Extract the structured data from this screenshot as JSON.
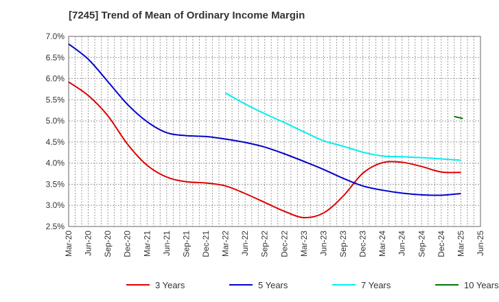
{
  "title": "[7245]  Trend of Mean of Ordinary Income Margin",
  "chart_data": {
    "type": "line",
    "title": "[7245]  Trend of Mean of Ordinary Income Margin",
    "xlabel": "",
    "ylabel": "",
    "ylim": [
      2.5,
      7.0
    ],
    "y_ticks": [
      "2.5%",
      "3.0%",
      "3.5%",
      "4.0%",
      "4.5%",
      "5.0%",
      "5.5%",
      "6.0%",
      "6.5%",
      "7.0%"
    ],
    "x_ticks": [
      "Mar-20",
      "Jun-20",
      "Sep-20",
      "Dec-20",
      "Mar-21",
      "Jun-21",
      "Sep-21",
      "Dec-21",
      "Mar-22",
      "Jun-22",
      "Sep-22",
      "Dec-22",
      "Mar-23",
      "Jun-23",
      "Sep-23",
      "Dec-23",
      "Mar-24",
      "Jun-24",
      "Sep-24",
      "Dec-24",
      "Mar-25",
      "Jun-25"
    ],
    "grid": true,
    "legend_position": "bottom",
    "x": [
      "Mar-20",
      "Jun-20",
      "Sep-20",
      "Dec-20",
      "Mar-21",
      "Jun-21",
      "Sep-21",
      "Dec-21",
      "Mar-22",
      "Jun-22",
      "Sep-22",
      "Dec-22",
      "Mar-23",
      "Jun-23",
      "Sep-23",
      "Dec-23",
      "Mar-24",
      "Jun-24",
      "Sep-24",
      "Dec-24",
      "Mar-25"
    ],
    "series": [
      {
        "name": "3 Years",
        "color": "#dd0000",
        "values": [
          5.92,
          5.6,
          5.12,
          4.45,
          3.95,
          3.67,
          3.56,
          3.53,
          3.46,
          3.28,
          3.07,
          2.86,
          2.71,
          2.82,
          3.22,
          3.76,
          4.01,
          4.02,
          3.92,
          3.79,
          3.78
        ]
      },
      {
        "name": "5 Years",
        "color": "#0000cc",
        "values": [
          6.82,
          6.46,
          5.93,
          5.39,
          4.98,
          4.72,
          4.65,
          4.63,
          4.57,
          4.49,
          4.38,
          4.22,
          4.04,
          3.85,
          3.64,
          3.46,
          3.36,
          3.29,
          3.25,
          3.24,
          3.28
        ]
      },
      {
        "name": "7 Years",
        "color": "#00eeee",
        "values": [
          null,
          null,
          null,
          null,
          null,
          null,
          null,
          null,
          5.66,
          5.4,
          5.17,
          4.96,
          4.74,
          4.53,
          4.4,
          4.26,
          4.17,
          4.15,
          4.13,
          4.1,
          4.07
        ]
      },
      {
        "name": "10 Years",
        "color": "#007700",
        "values": [
          null,
          null,
          null,
          null,
          null,
          null,
          null,
          null,
          null,
          null,
          null,
          null,
          null,
          null,
          null,
          null,
          null,
          null,
          null,
          null,
          5.08
        ]
      }
    ]
  }
}
